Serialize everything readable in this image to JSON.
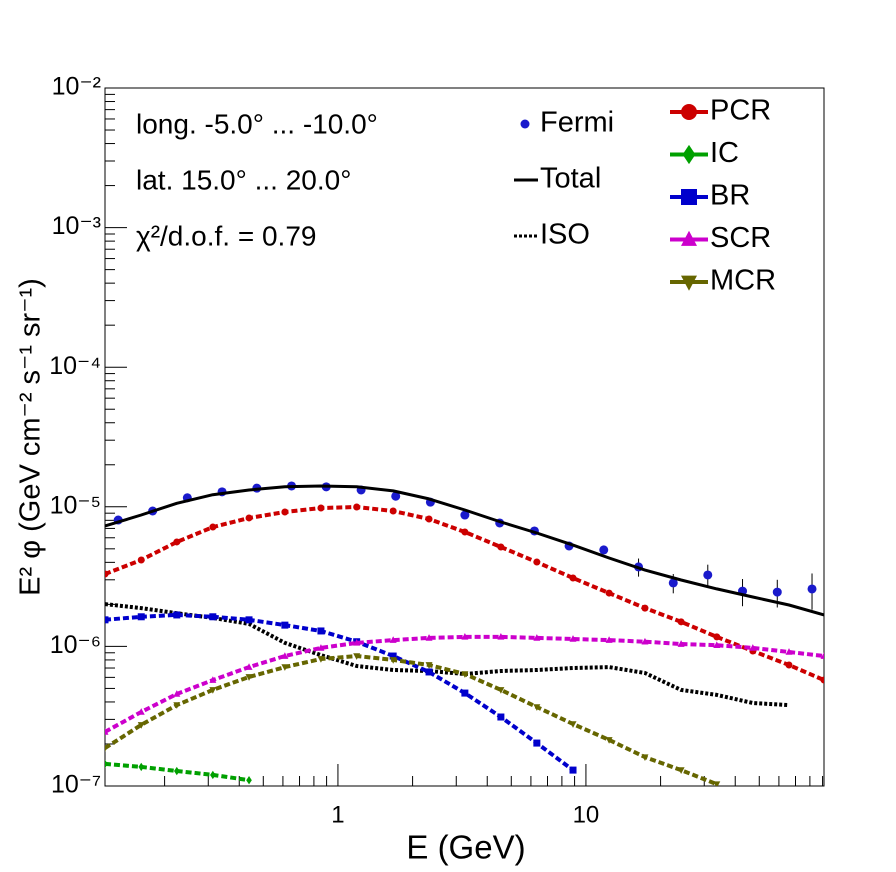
{
  "chart_data": {
    "type": "line",
    "xlog": true,
    "ylog": true,
    "xlabel": "E (GeV)",
    "ylabel": "E² φ (GeV cm⁻² s⁻¹ sr⁻¹)",
    "annotations": [
      "long. -5.0° ... -10.0°",
      "lat. 15.0° ... 20.0°",
      "χ²/d.o.f. = 0.79"
    ],
    "xlim": [
      0.115,
      91.2
    ],
    "ylim": [
      1e-07,
      0.01
    ],
    "xticks": [
      1,
      10
    ],
    "yticks": [
      {
        "value": 1e-07,
        "label": "10⁻⁷"
      },
      {
        "value": 1e-06,
        "label": "10⁻⁶"
      },
      {
        "value": 1e-05,
        "label": "10⁻⁵"
      },
      {
        "value": 0.0001,
        "label": "10⁻⁴"
      },
      {
        "value": 0.001,
        "label": "10⁻³"
      },
      {
        "value": 0.01,
        "label": "10⁻²"
      }
    ],
    "x": [
      0.115,
      0.161,
      0.224,
      0.313,
      0.438,
      0.611,
      0.854,
      1.19,
      1.67,
      2.33,
      3.25,
      4.54,
      6.34,
      8.87,
      12.4,
      17.3,
      24.2,
      33.7,
      47.1,
      65.9,
      91.2
    ],
    "series": [
      {
        "name": "Fermi",
        "color": "#1a1acc",
        "style": "points",
        "marker": "circle",
        "x": [
          0.13,
          0.179,
          0.247,
          0.341,
          0.471,
          0.65,
          0.897,
          1.24,
          1.71,
          2.36,
          3.25,
          4.49,
          6.2,
          8.55,
          11.8,
          16.3,
          22.5,
          31.0,
          42.8,
          59.1,
          81.6
        ],
        "values": [
          8.04e-06,
          9.33e-06,
          1.16e-05,
          1.28e-05,
          1.36e-05,
          1.41e-05,
          1.39e-05,
          1.32e-05,
          1.19e-05,
          1.08e-05,
          8.73e-06,
          7.66e-06,
          6.71e-06,
          5.24e-06,
          4.91e-06,
          3.71e-06,
          2.85e-06,
          3.25e-06,
          2.49e-06,
          2.45e-06,
          2.58e-06
        ],
        "errors": [
          2.4e-07,
          2.8e-07,
          3.5e-07,
          3.8e-07,
          4.1e-07,
          4.2e-07,
          4.2e-07,
          4e-07,
          3.6e-07,
          3.2e-07,
          2.6e-07,
          2.3e-07,
          2.7e-07,
          2.6e-07,
          3e-07,
          5.5e-07,
          4.5e-07,
          6e-07,
          5.5e-07,
          5.5e-07,
          7.5e-07
        ]
      },
      {
        "name": "Total",
        "color": "#000000",
        "style": "solid",
        "values": [
          7.28e-06,
          8.73e-06,
          1.06e-05,
          1.22e-05,
          1.32e-05,
          1.39e-05,
          1.41e-05,
          1.39e-05,
          1.3e-05,
          1.14e-05,
          9.48e-06,
          7.78e-06,
          6.49e-06,
          5.32e-06,
          4.3e-06,
          3.52e-06,
          2.99e-06,
          2.58e-06,
          2.26e-06,
          1.98e-06,
          1.68e-06
        ]
      },
      {
        "name": "ISO",
        "color": "#000000",
        "style": "dotted",
        "values": [
          2.01e-06,
          1.88e-06,
          1.73e-06,
          1.6e-06,
          1.45e-06,
          1.06e-06,
          8.67e-07,
          7.24e-07,
          6.78e-07,
          6.67e-07,
          6.34e-07,
          6.67e-07,
          6.78e-07,
          7e-07,
          7.11e-07,
          6.45e-07,
          4.88e-07,
          4.49e-07,
          3.93e-07,
          3.8e-07,
          null
        ]
      },
      {
        "name": "PCR",
        "color": "#cc0000",
        "style": "marked",
        "marker": "circle",
        "values": [
          3.3e-06,
          4.16e-06,
          5.6e-06,
          7.16e-06,
          8.32e-06,
          9.18e-06,
          9.8e-06,
          9.97e-06,
          9.33e-06,
          8.18e-06,
          6.6e-06,
          5.15e-06,
          4.02e-06,
          3.09e-06,
          2.41e-06,
          1.88e-06,
          1.5e-06,
          1.17e-06,
          9.27e-07,
          7.36e-07,
          5.74e-07
        ]
      },
      {
        "name": "IC",
        "color": "#00a000",
        "style": "marked",
        "marker": "diamond",
        "values": [
          1.44e-07,
          1.37e-07,
          1.28e-07,
          1.2e-07,
          1.1e-07,
          null,
          null,
          null,
          null,
          null,
          null,
          null,
          null,
          null,
          null,
          null,
          null,
          null,
          null,
          null,
          null
        ]
      },
      {
        "name": "BR",
        "color": "#0000cc",
        "style": "marked",
        "marker": "square",
        "values": [
          1.55e-06,
          1.63e-06,
          1.68e-06,
          1.63e-06,
          1.55e-06,
          1.42e-06,
          1.29e-06,
          1.08e-06,
          8.53e-07,
          6.56e-07,
          4.63e-07,
          3.12e-07,
          2.03e-07,
          1.3e-07,
          null,
          null,
          null,
          null,
          null,
          null,
          null
        ]
      },
      {
        "name": "SCR",
        "color": "#cc00cc",
        "style": "marked",
        "marker": "triangle-up",
        "values": [
          2.44e-07,
          3.39e-07,
          4.56e-07,
          5.74e-07,
          7.11e-07,
          8.53e-07,
          9.75e-07,
          1.06e-06,
          1.11e-06,
          1.15e-06,
          1.17e-06,
          1.17e-06,
          1.15e-06,
          1.13e-06,
          1.11e-06,
          1.08e-06,
          1.04e-06,
          1.02e-06,
          9.75e-07,
          9.12e-07,
          8.53e-07
        ]
      },
      {
        "name": "MCR",
        "color": "#666600",
        "style": "marked",
        "marker": "triangle-down",
        "values": [
          1.87e-07,
          2.74e-07,
          3.8e-07,
          4.88e-07,
          6.04e-07,
          7.11e-07,
          8.13e-07,
          8.53e-07,
          8e-07,
          7.36e-07,
          6.34e-07,
          4.88e-07,
          3.68e-07,
          2.78e-07,
          2.14e-07,
          1.61e-07,
          1.3e-07,
          1.03e-07,
          null,
          null,
          null
        ]
      }
    ]
  }
}
